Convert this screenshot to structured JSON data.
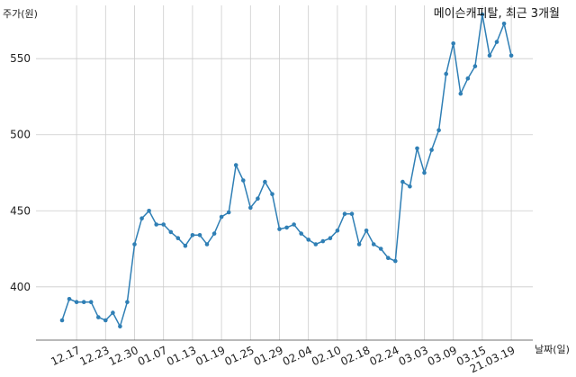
{
  "chart_data": {
    "type": "line",
    "title": "메이슨캐피탈, 최근 3개월",
    "ylabel": "주가(원)",
    "xlabel": "날짜(일)",
    "ylim": [
      365,
      585
    ],
    "yticks": [
      400,
      450,
      500,
      550
    ],
    "grid": true,
    "series_color": "#2f7fb5",
    "x_tick_labels": [
      "12.17",
      "12.23",
      "12.30",
      "01.07",
      "01.13",
      "01.19",
      "01.25",
      "01.29",
      "02.04",
      "02.10",
      "02.18",
      "02.24",
      "03.03",
      "03.09",
      "03.15",
      "21.03.19"
    ],
    "x_tick_indices": [
      2,
      6,
      10,
      14,
      18,
      22,
      26,
      30,
      34,
      38,
      42,
      46,
      50,
      54,
      58,
      62
    ],
    "series": [
      {
        "values": [
          378,
          392,
          390,
          390,
          390,
          380,
          378,
          383,
          374,
          390,
          428,
          445,
          450,
          441,
          441,
          436,
          432,
          427,
          434,
          434,
          428,
          435,
          446,
          449,
          480,
          470,
          452,
          458,
          469,
          461,
          438,
          439,
          441,
          435,
          431,
          428,
          430,
          432,
          437,
          448,
          448,
          428,
          437,
          428,
          425,
          419,
          417,
          469,
          466,
          491,
          475,
          490,
          503,
          540,
          560,
          527,
          537,
          545,
          579,
          552,
          561,
          573,
          552
        ]
      }
    ]
  }
}
